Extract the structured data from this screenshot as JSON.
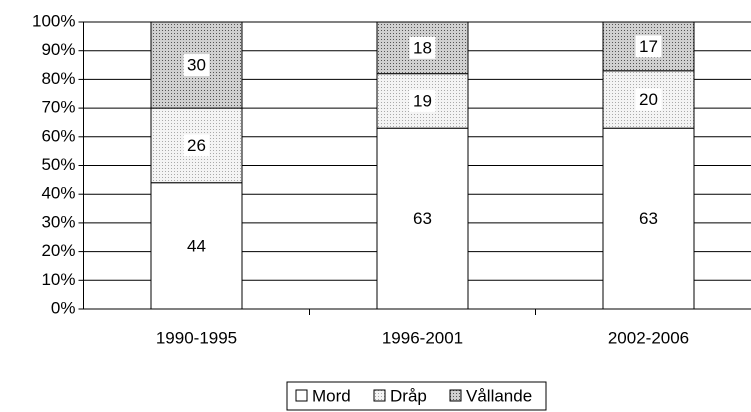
{
  "chart_data": {
    "type": "stacked_bar",
    "categories": [
      "1990-1995",
      "1996-2001",
      "2002-2006"
    ],
    "series": [
      {
        "name": "Mord",
        "color": "#ffffff",
        "values": [
          44,
          63,
          63
        ]
      },
      {
        "name": "Dråp",
        "color": "#ececec",
        "values": [
          26,
          19,
          20
        ]
      },
      {
        "name": "Vållande",
        "color": "#b8b8b8",
        "values": [
          30,
          18,
          17
        ]
      }
    ],
    "ylim": [
      0,
      100
    ],
    "yticks": [
      {
        "value": 0,
        "label": "0%"
      },
      {
        "value": 10,
        "label": "10%"
      },
      {
        "value": 20,
        "label": "20%"
      },
      {
        "value": 30,
        "label": "30%"
      },
      {
        "value": 40,
        "label": "40%"
      },
      {
        "value": 50,
        "label": "50%"
      },
      {
        "value": 60,
        "label": "60%"
      },
      {
        "value": 70,
        "label": "70%"
      },
      {
        "value": 80,
        "label": "80%"
      },
      {
        "value": 90,
        "label": "90%"
      },
      {
        "value": 100,
        "label": "100%"
      }
    ],
    "grid": true,
    "legend": "bottom"
  }
}
